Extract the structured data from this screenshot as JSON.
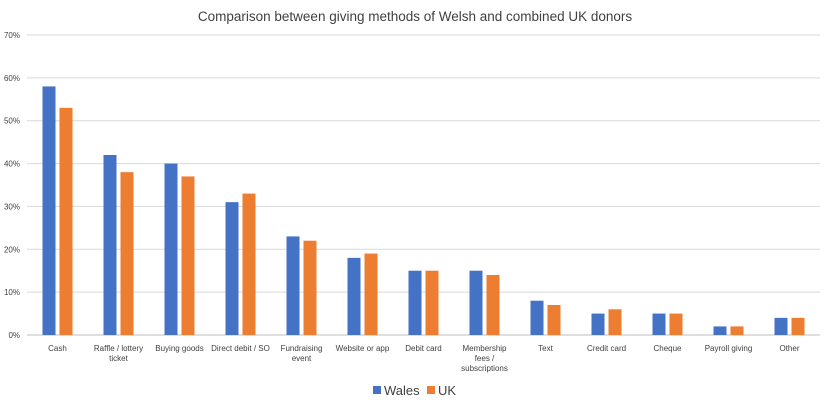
{
  "chart_data": {
    "type": "bar",
    "title": "Comparison between giving methods of Welsh and combined UK donors",
    "xlabel": "",
    "ylabel": "",
    "ylim": [
      0,
      70
    ],
    "yticks": [
      "0%",
      "10%",
      "20%",
      "30%",
      "40%",
      "50%",
      "60%",
      "70%"
    ],
    "grid": true,
    "legend_position": "bottom",
    "categories": [
      [
        "Cash"
      ],
      [
        "Raffle / lottery",
        "ticket"
      ],
      [
        "Buying goods"
      ],
      [
        "Direct debit / SO"
      ],
      [
        "Fundraising",
        "event"
      ],
      [
        "Website or app"
      ],
      [
        "Debit card"
      ],
      [
        "Membership",
        "fees /",
        "subscriptions"
      ],
      [
        "Text"
      ],
      [
        "Credit card"
      ],
      [
        "Cheque"
      ],
      [
        "Payroll giving"
      ],
      [
        "Other"
      ]
    ],
    "series": [
      {
        "name": "Wales",
        "color": "#4472c4",
        "values": [
          58,
          42,
          40,
          31,
          23,
          18,
          15,
          15,
          8,
          5,
          5,
          2,
          4
        ]
      },
      {
        "name": "UK",
        "color": "#ed7d31",
        "values": [
          53,
          38,
          37,
          33,
          22,
          19,
          15,
          14,
          7,
          6,
          5,
          2,
          4
        ]
      }
    ]
  }
}
